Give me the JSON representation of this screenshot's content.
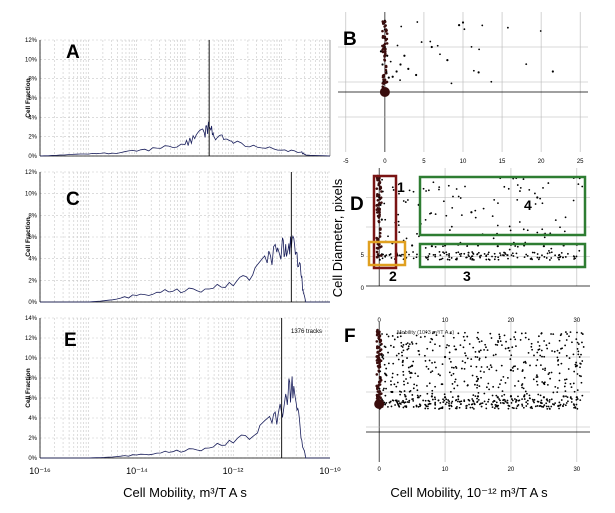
{
  "panels": {
    "A": "A",
    "B": "B",
    "C": "C",
    "D": "D",
    "E": "E",
    "F": "F"
  },
  "histograms": {
    "ylabel": "Cell Fraction",
    "xlabel": "Cell Mobility, m³/T A s",
    "x_tick_labels": [
      "10⁻¹⁶",
      "10⁻¹⁴",
      "10⁻¹²",
      "10⁻¹⁰"
    ],
    "A_yticks": [
      "0%",
      "2%",
      "4%",
      "6%",
      "8%",
      "10%",
      "12%"
    ],
    "C_yticks": [
      "0%",
      "2%",
      "4%",
      "6%",
      "8%",
      "10%",
      "12%"
    ],
    "E_yticks": [
      "0%",
      "2%",
      "4%",
      "6%",
      "8%",
      "10%",
      "12%",
      "14%"
    ],
    "E_annotation": "1376 tracks"
  },
  "scatter": {
    "ylabel": "Cell Diameter, pixels",
    "xlabel": "Cell Mobility, 10⁻¹² m³/T A s",
    "B_xticks": [
      "-5",
      "0",
      "5",
      "10",
      "15",
      "20",
      "25"
    ],
    "D_xticks": [
      "0",
      "10",
      "20",
      "30"
    ],
    "D_yticks": [
      "5",
      "0"
    ],
    "F_xticks": [
      "0",
      "10",
      "20",
      "30"
    ],
    "F_overlay": "Mobility (10^3 m³/T A s)",
    "regions": {
      "r1": "1",
      "r2": "2",
      "r3": "3",
      "r4": "4"
    },
    "region_colors": {
      "r1": "#7a1414",
      "r2": "#e0a020",
      "r3": "#2e7d32",
      "r4": "#2e7d32"
    }
  },
  "chart_data": [
    {
      "type": "line",
      "panel": "A",
      "ylabel": "Cell Fraction",
      "xlabel": "Cell Mobility, m³/T A s",
      "xscale": "log",
      "xlim": [
        1e-16,
        1e-10
      ],
      "ylim": [
        0,
        12
      ],
      "x_exp": [
        -16,
        -15.5,
        -15,
        -14.5,
        -14,
        -13.5,
        -13,
        -12.8,
        -12.6,
        -12.5,
        -12.4,
        -12.2,
        -12,
        -11.5,
        -11,
        -10.6,
        -10.5,
        -10
      ],
      "values": [
        0,
        0.1,
        0.2,
        0.3,
        0.5,
        0.8,
        1.2,
        1.8,
        2.4,
        3.0,
        2.0,
        1.7,
        1.3,
        0.9,
        0.6,
        0.4,
        0.1,
        0
      ],
      "marker_x_exp": -12.5
    },
    {
      "type": "line",
      "panel": "C",
      "ylabel": "Cell Fraction",
      "xlabel": "Cell Mobility, m³/T A s",
      "xscale": "log",
      "xlim": [
        1e-16,
        1e-10
      ],
      "ylim": [
        0,
        12
      ],
      "x_exp": [
        -16,
        -15,
        -14.5,
        -14,
        -13.5,
        -13,
        -12.5,
        -12,
        -11.6,
        -11.3,
        -11.1,
        -11,
        -10.9,
        -10.8,
        -10.7,
        -10.6,
        -10.55,
        -10.5,
        -10
      ],
      "values": [
        0,
        0,
        0.2,
        0.6,
        0.9,
        1.0,
        1.2,
        1.5,
        2.5,
        3.6,
        4.6,
        5.0,
        4.2,
        5.0,
        4.6,
        2.5,
        0.8,
        0,
        0
      ],
      "marker_x_exp": -10.8
    },
    {
      "type": "line",
      "panel": "E",
      "ylabel": "Cell Fraction",
      "xlabel": "Cell Mobility, m³/T A s",
      "xscale": "log",
      "xlim": [
        1e-16,
        1e-10
      ],
      "ylim": [
        0,
        14
      ],
      "x_exp": [
        -16,
        -15,
        -14.5,
        -14,
        -13.5,
        -13,
        -12.5,
        -12,
        -11.5,
        -11.2,
        -11,
        -10.9,
        -10.8,
        -10.7,
        -10.6,
        -10.5,
        -10
      ],
      "values": [
        0,
        0,
        0.1,
        0.3,
        0.5,
        0.7,
        1.0,
        1.5,
        2.5,
        3.5,
        4.5,
        6.0,
        6.8,
        5.5,
        2.0,
        0,
        0
      ],
      "marker_x_exp": -11,
      "annotation": "1376 tracks"
    },
    {
      "type": "scatter",
      "panel": "B",
      "xlabel": "Cell Mobility, 10⁻¹² m³/T A s",
      "ylabel": "Cell Diameter, pixels",
      "xlim": [
        -6,
        26
      ],
      "x": [
        0,
        0,
        0,
        0,
        0.3,
        -0.3,
        0.2,
        -0.2,
        0.5,
        1.0,
        1.5,
        2.0,
        2.5,
        3.0,
        4.0,
        6.0,
        8.0,
        9.5,
        10.0,
        12.0,
        21.5,
        -0.5
      ],
      "y": [
        15,
        14,
        13,
        12,
        11,
        10,
        9,
        8,
        8.5,
        8.6,
        9.2,
        10,
        11,
        9.5,
        8.8,
        12,
        10.5,
        14.5,
        14.8,
        9.1,
        9.2,
        11.5
      ]
    },
    {
      "type": "scatter",
      "panel": "D",
      "xlabel": "Cell Mobility, 10⁻¹² m³/T A s",
      "ylabel": "Cell Diameter, pixels",
      "xlim": [
        -2,
        32
      ],
      "x": [
        0,
        0.2,
        -0.2,
        0.4,
        1,
        2,
        5,
        8,
        10,
        12,
        15,
        18,
        20,
        22,
        25,
        28,
        30,
        6,
        14,
        24
      ],
      "y": [
        12,
        11,
        10,
        9,
        6,
        5.8,
        5.5,
        5.4,
        5.5,
        5.6,
        5.5,
        5.4,
        5.6,
        5.5,
        5.4,
        5.5,
        5.6,
        11,
        10,
        12
      ]
    },
    {
      "type": "scatter",
      "panel": "F",
      "xlabel": "Cell Mobility, 10⁻¹² m³/T A s",
      "ylabel": "Cell Diameter, pixels",
      "xlim": [
        -2,
        32
      ],
      "x": [
        0,
        0.5,
        1,
        2,
        4,
        6,
        8,
        10,
        12,
        15,
        18,
        20,
        22,
        25,
        28,
        30,
        5,
        10,
        15,
        20,
        25,
        30
      ],
      "y": [
        14,
        12,
        10,
        8,
        7.5,
        7.4,
        7.5,
        7.4,
        7.5,
        7.5,
        7.4,
        7.5,
        7.5,
        7.4,
        7.5,
        7.4,
        11,
        12,
        9.5,
        10.5,
        9,
        11
      ]
    }
  ]
}
